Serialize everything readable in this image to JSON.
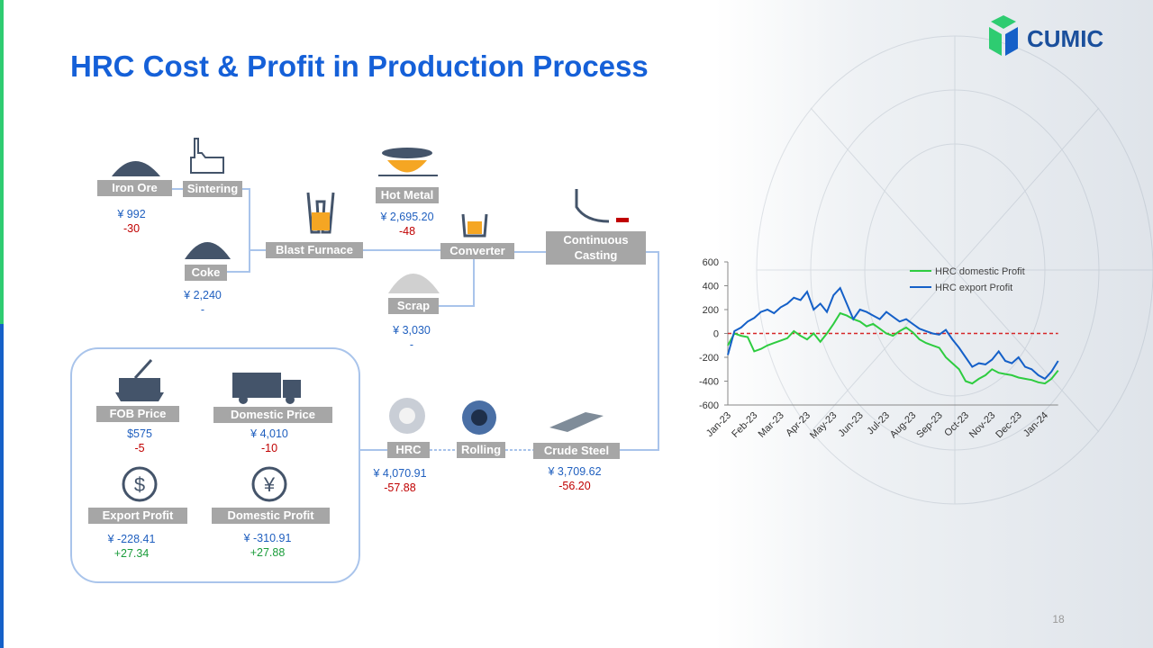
{
  "header": {
    "title": "HRC Cost & Profit in Production Process",
    "logo": "CUMIC",
    "page_number": "18"
  },
  "nodes": [
    {
      "label": "Iron Ore",
      "price": "¥ 992",
      "change": "-30"
    },
    {
      "label": "Sintering"
    },
    {
      "label": "Coke",
      "price": "¥ 2,240",
      "change": "-"
    },
    {
      "label": "Blast Furnace"
    },
    {
      "label": "Hot Metal",
      "price": "¥ 2,695.20",
      "change": "-48"
    },
    {
      "label": "Converter"
    },
    {
      "label": "Scrap",
      "price": "¥ 3,030",
      "change": "-"
    },
    {
      "label": "Continuous Casting"
    },
    {
      "label": "Crude Steel",
      "price": "¥ 3,709.62",
      "change": "-56.20"
    },
    {
      "label": "Rolling"
    },
    {
      "label": "HRC",
      "price": "¥ 4,070.91",
      "change": "-57.88"
    }
  ],
  "summary": [
    {
      "label": "FOB Price",
      "price": "$575",
      "change": "-5"
    },
    {
      "label": "Domestic Price",
      "price": "¥ 4,010",
      "change": "-10"
    },
    {
      "label": "Export Profit",
      "price": "¥ -228.41",
      "change": "+27.34"
    },
    {
      "label": "Domestic Profit",
      "price": "¥ -310.91",
      "change": "+27.88"
    }
  ],
  "chart_data": {
    "type": "line",
    "categories": [
      "Jan-23",
      null,
      null,
      null,
      "Feb-23",
      null,
      null,
      null,
      "Mar-23",
      null,
      null,
      null,
      "Apr-23",
      null,
      null,
      null,
      "May-23",
      null,
      null,
      null,
      "Jun-23",
      null,
      null,
      null,
      "Jul-23",
      null,
      null,
      null,
      "Aug-23",
      null,
      null,
      null,
      "Sep-23",
      null,
      null,
      null,
      "Oct-23",
      null,
      null,
      null,
      "Nov-23",
      null,
      null,
      null,
      "Dec-23",
      null,
      null,
      null,
      "Jan-24",
      null,
      null
    ],
    "series": [
      {
        "name": "HRC domestic Profit",
        "color": "#2ecc40",
        "values": [
          -100,
          0,
          -20,
          -30,
          -150,
          -130,
          -100,
          -80,
          -60,
          -40,
          20,
          -20,
          -50,
          0,
          -70,
          0,
          80,
          170,
          150,
          120,
          100,
          60,
          80,
          40,
          0,
          -20,
          20,
          50,
          10,
          -50,
          -80,
          -100,
          -120,
          -200,
          -250,
          -300,
          -400,
          -420,
          -380,
          -350,
          -300,
          -330,
          -340,
          -350,
          -370,
          -380,
          -390,
          -410,
          -420,
          -380,
          -310
        ]
      },
      {
        "name": "HRC export Profit",
        "color": "#1560c8",
        "values": [
          -180,
          20,
          50,
          100,
          130,
          180,
          200,
          170,
          220,
          250,
          300,
          280,
          350,
          200,
          250,
          180,
          320,
          380,
          250,
          120,
          200,
          180,
          150,
          120,
          180,
          140,
          100,
          120,
          80,
          40,
          20,
          0,
          -10,
          30,
          -50,
          -120,
          -200,
          -280,
          -250,
          -260,
          -220,
          -150,
          -230,
          -250,
          -200,
          -280,
          -300,
          -350,
          -380,
          -320,
          -230
        ]
      }
    ],
    "ylim": [
      -600,
      600
    ],
    "yticks": [
      -600,
      -400,
      -200,
      0,
      200,
      400,
      600
    ],
    "reference_line": 0,
    "reference_color": "#d62728",
    "legend": "upper right"
  }
}
